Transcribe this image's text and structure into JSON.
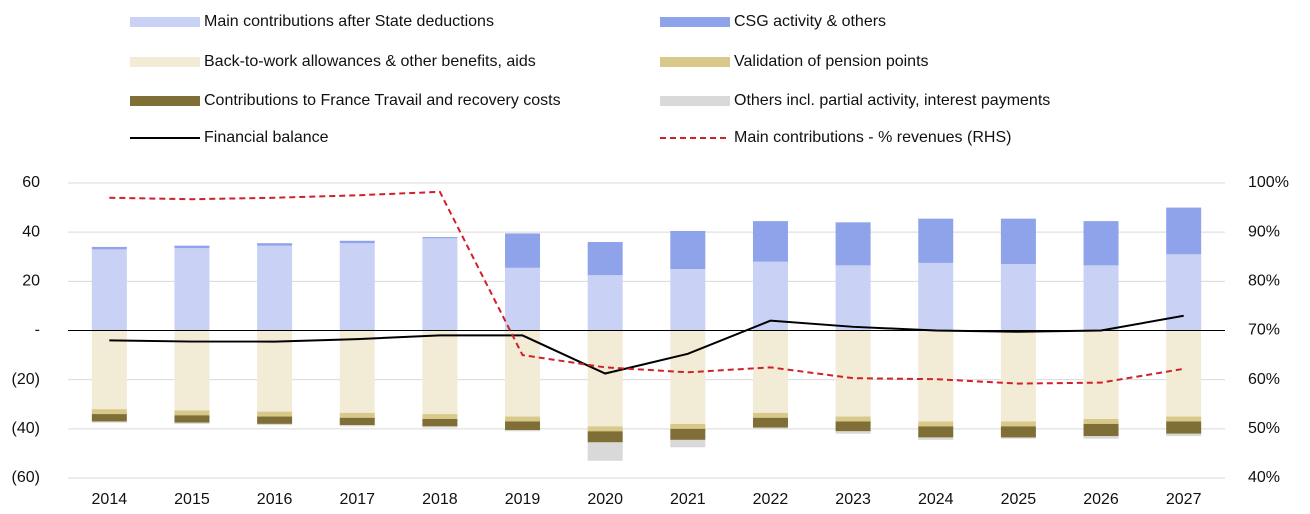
{
  "chart_data": {
    "type": "bar",
    "categories": [
      "2014",
      "2015",
      "2016",
      "2017",
      "2018",
      "2019",
      "2020",
      "2021",
      "2022",
      "2023",
      "2024",
      "2025",
      "2026",
      "2027"
    ],
    "series": [
      {
        "name": "Main contributions after State deductions",
        "type": "bar",
        "color": "#c9d1f5",
        "values": [
          33,
          33.5,
          34.5,
          35.5,
          37.5,
          25.5,
          22.5,
          25,
          28,
          26.5,
          27.5,
          27,
          26.5,
          31
        ]
      },
      {
        "name": "CSG activity & others",
        "type": "bar",
        "color": "#8fa3ea",
        "values": [
          1,
          1,
          1,
          1,
          0.5,
          14,
          13.5,
          15.5,
          16.5,
          17.5,
          18,
          18.5,
          18,
          19
        ]
      },
      {
        "name": "Back-to-work allowances & other benefits, aids",
        "type": "bar",
        "color": "#f2ebd6",
        "values": [
          -32,
          -32.5,
          -33,
          -33.5,
          -34,
          -35,
          -39,
          -38,
          -33.5,
          -35,
          -37,
          -37,
          -36,
          -35
        ]
      },
      {
        "name": "Validation of pension points",
        "type": "bar",
        "color": "#d8c98a",
        "values": [
          -2,
          -2,
          -2,
          -2,
          -2,
          -2,
          -2,
          -2,
          -2,
          -2,
          -2,
          -2,
          -2,
          -2
        ]
      },
      {
        "name": "Contributions to France Travail and recovery costs",
        "type": "bar",
        "color": "#7f6e35",
        "values": [
          -3,
          -3,
          -3,
          -3,
          -3,
          -3.5,
          -4.5,
          -4.5,
          -4,
          -4,
          -4.5,
          -4.5,
          -5,
          -5
        ]
      },
      {
        "name": "Others incl. partial activity, interest payments",
        "type": "bar",
        "color": "#d9d9d9",
        "values": [
          -0.5,
          -0.5,
          -0.5,
          -0.5,
          -0.5,
          -0.5,
          -7.5,
          -3,
          -0.5,
          -1,
          -1,
          -0.5,
          -1,
          -1
        ]
      },
      {
        "name": "Financial balance",
        "type": "line",
        "color": "#000000",
        "dashed": false,
        "values": [
          -4,
          -4.5,
          -4.5,
          -3.5,
          -2,
          -2,
          -17.5,
          -9.5,
          4,
          1.5,
          0,
          -0.5,
          0,
          6
        ]
      },
      {
        "name": "Main contributions - % revenues (RHS)",
        "type": "line",
        "axis": "y2",
        "color": "#d0202a",
        "dashed": true,
        "values": [
          97,
          96.7,
          97,
          97.5,
          98.2,
          65,
          62.5,
          61.5,
          62.5,
          60.3,
          60.1,
          59.2,
          59.4,
          62.2
        ]
      }
    ],
    "ylim": [
      -60,
      60
    ],
    "yticks": [
      {
        "value": -60,
        "label": "(60)"
      },
      {
        "value": -40,
        "label": "(40)"
      },
      {
        "value": -20,
        "label": "(20)"
      },
      {
        "value": 0,
        "label": "-"
      },
      20,
      40,
      60
    ],
    "y2lim": [
      40,
      100
    ],
    "y2ticks": [
      {
        "value": 40,
        "label": "40%"
      },
      {
        "value": 50,
        "label": "50%"
      },
      {
        "value": 60,
        "label": "60%"
      },
      {
        "value": 70,
        "label": "70%"
      },
      {
        "value": 80,
        "label": "80%"
      },
      {
        "value": 90,
        "label": "90%"
      },
      {
        "value": 100,
        "label": "100%"
      }
    ],
    "grid": true,
    "legend": "top"
  }
}
